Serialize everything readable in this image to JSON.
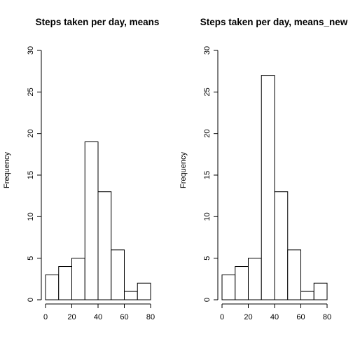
{
  "chart_data": [
    {
      "type": "bar",
      "title": "Steps taken per day, means",
      "xlabel": "",
      "ylabel": "Frequency",
      "bin_edges": [
        0,
        10,
        20,
        30,
        40,
        50,
        60,
        70,
        80
      ],
      "values": [
        3,
        4,
        5,
        19,
        13,
        6,
        1,
        2
      ],
      "xlim": [
        0,
        80
      ],
      "ylim": [
        0,
        30
      ],
      "x_ticks": [
        0,
        20,
        40,
        60,
        80
      ],
      "y_ticks": [
        0,
        5,
        10,
        15,
        20,
        25,
        30
      ],
      "grid": false
    },
    {
      "type": "bar",
      "title": "Steps taken per day, means_new",
      "xlabel": "",
      "ylabel": "Frequency",
      "bin_edges": [
        0,
        10,
        20,
        30,
        40,
        50,
        60,
        70,
        80
      ],
      "values": [
        3,
        4,
        5,
        27,
        13,
        6,
        1,
        2
      ],
      "xlim": [
        0,
        80
      ],
      "ylim": [
        0,
        30
      ],
      "x_ticks": [
        0,
        20,
        40,
        60,
        80
      ],
      "y_ticks": [
        0,
        5,
        10,
        15,
        20,
        25,
        30
      ],
      "grid": false
    }
  ]
}
